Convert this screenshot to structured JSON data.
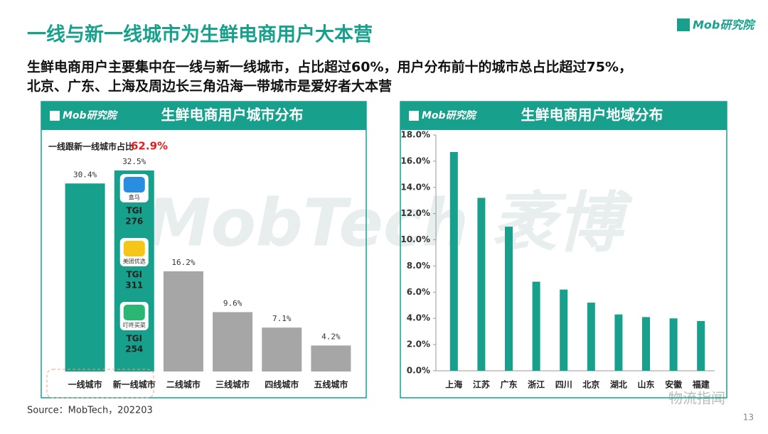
{
  "title": "一线与新一线城市为生鲜电商用户大本营",
  "subtitle": [
    "生鲜电商用户主要集中在一线与新一线城市，占比超过60%，用户分布前十的城市总占比超过75%，",
    "北京、广东、上海及周边长三角沿海一带城市是爱好者大本营"
  ],
  "logo": "Mob研究院",
  "watermark": "MobTech 袤博",
  "source": "Source：MobTech，202203",
  "page_number": "13",
  "wechat_mark": "物流指闻",
  "chart_data": [
    {
      "type": "bar",
      "title": "生鲜电商用户城市分布",
      "logo": "Mob研究院",
      "annotation": "一线跟新一线城市占比",
      "annotation_value": "62.9%",
      "categories": [
        "一线城市",
        "新一线城市",
        "二线城市",
        "三线城市",
        "四线城市",
        "五线城市"
      ],
      "values": [
        30.4,
        32.5,
        16.2,
        9.6,
        7.1,
        4.2
      ],
      "value_labels": [
        "30.4%",
        "32.5%",
        "16.2%",
        "9.6%",
        "7.1%",
        "4.2%"
      ],
      "colors": [
        "#17a08b",
        "#17a08b",
        "#a6a6a6",
        "#a6a6a6",
        "#a6a6a6",
        "#a6a6a6"
      ],
      "tgi": [
        {
          "brand": "盒马",
          "label": "TGI",
          "value": "276"
        },
        {
          "brand": "美团优选",
          "label": "TGI",
          "value": "311"
        },
        {
          "brand": "叮咚买菜",
          "label": "TGI",
          "value": "254"
        }
      ]
    },
    {
      "type": "bar",
      "title": "生鲜电商用户地域分布",
      "logo": "Mob研究院",
      "categories": [
        "上海",
        "江苏",
        "广东",
        "浙江",
        "四川",
        "北京",
        "湖北",
        "山东",
        "安徽",
        "福建"
      ],
      "values": [
        16.7,
        13.2,
        11.0,
        6.8,
        6.2,
        5.2,
        4.3,
        4.1,
        4.0,
        3.8
      ],
      "color": "#17a08b",
      "ylim": [
        0,
        18
      ],
      "yticks": [
        {
          "value": 0,
          "label": "0.0%"
        },
        {
          "value": 2,
          "label": "2.0%"
        },
        {
          "value": 4,
          "label": "4.0%"
        },
        {
          "value": 6,
          "label": "6.0%"
        },
        {
          "value": 8,
          "label": "8.0%"
        },
        {
          "value": 10,
          "label": "10.0%"
        },
        {
          "value": 12,
          "label": "12.0%"
        },
        {
          "value": 14,
          "label": "14.0%"
        },
        {
          "value": 16,
          "label": "16.0%"
        },
        {
          "value": 18,
          "label": "18.0%"
        }
      ]
    }
  ]
}
